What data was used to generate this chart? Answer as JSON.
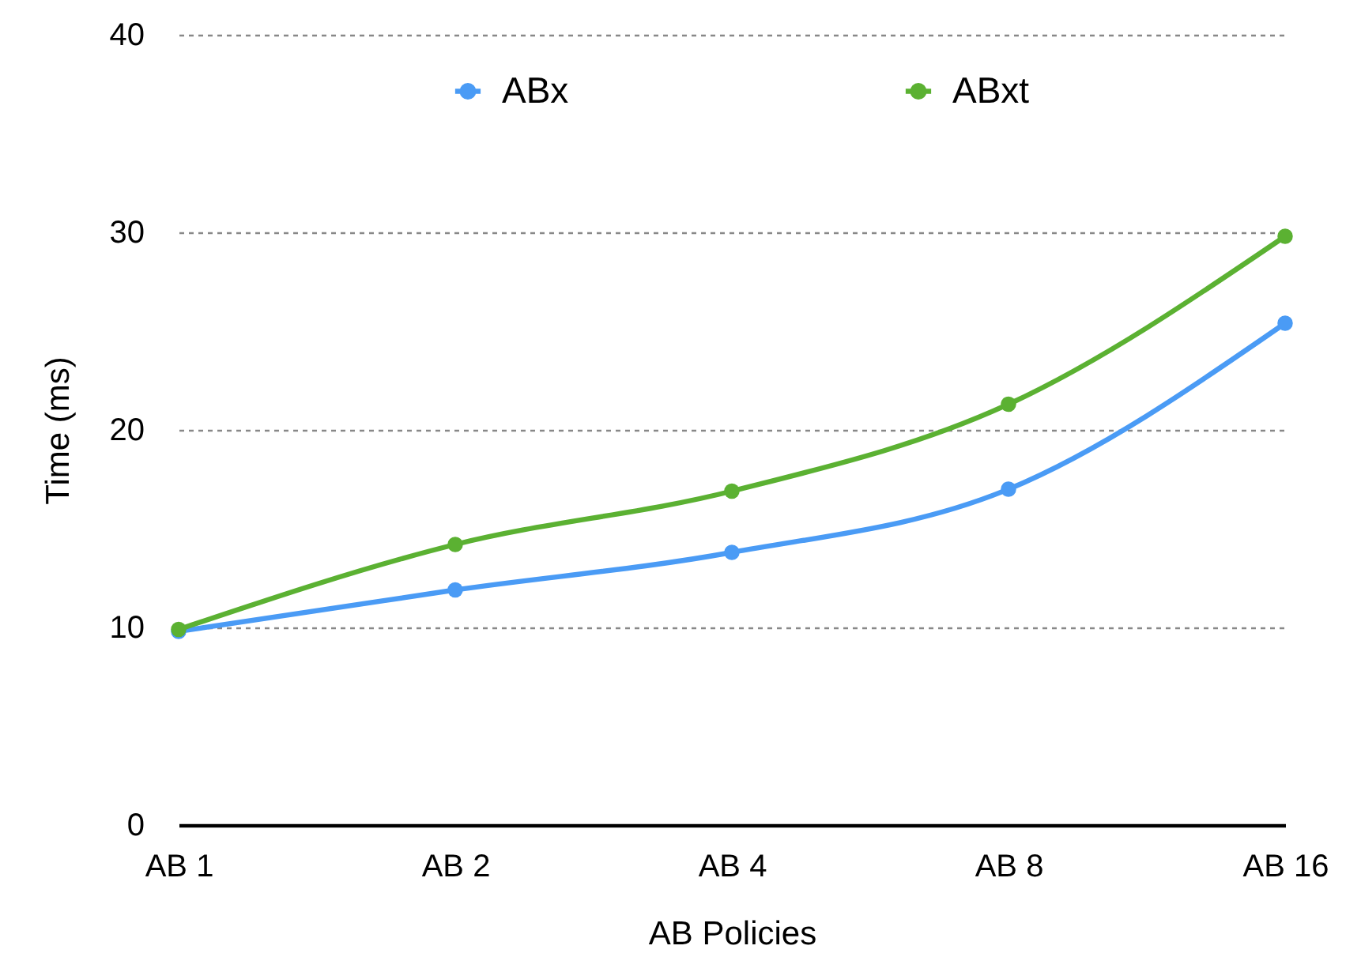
{
  "chart_data": {
    "type": "line",
    "xlabel": "AB Policies",
    "ylabel": "Time (ms)",
    "categories": [
      "AB 1",
      "AB 2",
      "AB 4",
      "AB 8",
      "AB 16"
    ],
    "series": [
      {
        "name": "ABx",
        "color": "#4a9bf5",
        "values": [
          9.8,
          11.9,
          13.8,
          17.0,
          25.4
        ]
      },
      {
        "name": "ABxt",
        "color": "#5bb132",
        "values": [
          9.9,
          14.2,
          16.9,
          21.3,
          29.8
        ]
      }
    ],
    "ylim": [
      0,
      40
    ],
    "yticks": [
      0,
      10,
      20,
      30,
      40
    ],
    "grid": "y",
    "legend": "top",
    "marker": "circle",
    "line_style": "solid"
  }
}
